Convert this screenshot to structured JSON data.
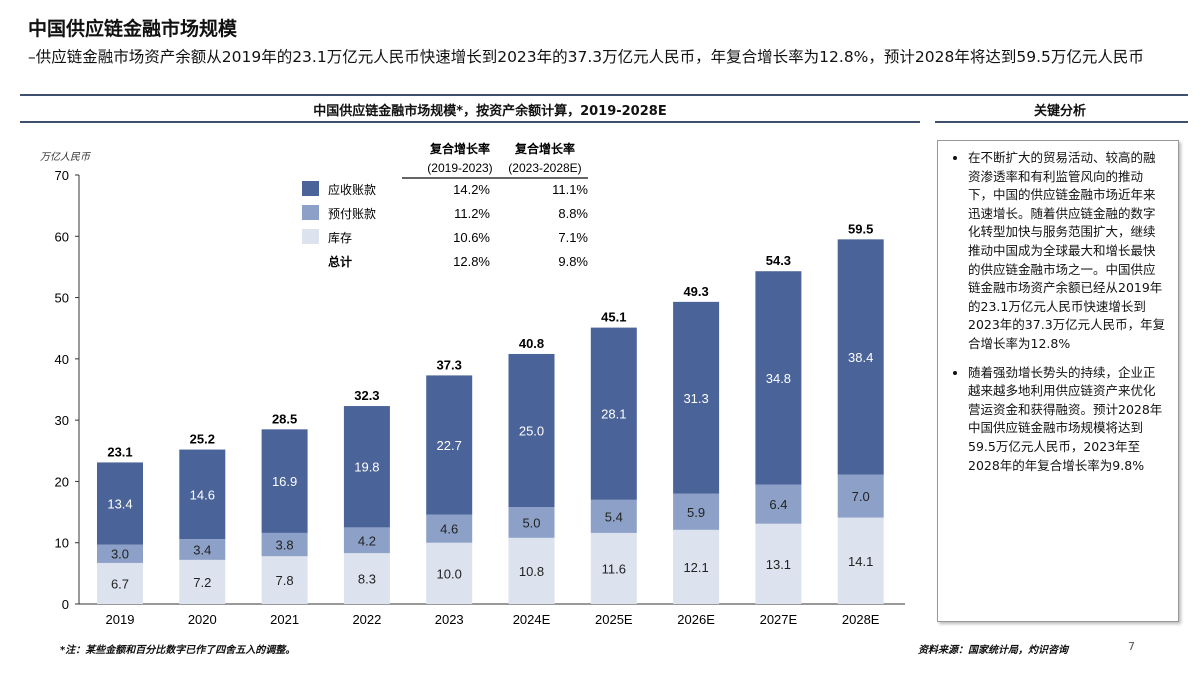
{
  "title": "中国供应链金融市场规模",
  "subtitle": "–供应链金融市场资产余额从2019年的23.1万亿元人民币快速增长到2023年的37.3万亿元人民币，年复合增长率为12.8%，预计2028年将达到59.5万亿元人民币",
  "key_analysis": {
    "title": "关键分析",
    "bullets": [
      "在不断扩大的贸易活动、较高的融资渗透率和有利监管风向的推动下，中国的供应链金融市场近年来迅速增长。随着供应链金融的数字化转型加快与服务范围扩大，继续推动中国成为全球最大和增长最快的供应链金融市场之一。中国供应链金融市场资产余额已经从2019年的23.1万亿元人民币快速增长到2023年的37.3万亿元人民币，年复合增长率为12.8%",
      "随着强劲增长势头的持续，企业正越来越多地利用供应链资产来优化营运资金和获得融资。预计2028年中国供应链金融市场规模将达到59.5万亿元人民币，2023年至2028年的年复合增长率为9.8%"
    ]
  },
  "footnote": "*注：某些金额和百分比数字已作了四舍五入的调整。",
  "source": "资料来源：国家统计局，灼识咨询",
  "page_number": "7",
  "chart_data": {
    "type": "bar",
    "stacked": true,
    "title": "中国供应链金融市场规模*，按资产余额计算，2019-2028E",
    "ylabel": "万亿人民币",
    "ylim": [
      0,
      70
    ],
    "yticks": [
      0,
      10,
      20,
      30,
      40,
      50,
      60,
      70
    ],
    "grid": false,
    "categories": [
      "2019",
      "2020",
      "2021",
      "2022",
      "2023",
      "2024E",
      "2025E",
      "2026E",
      "2027E",
      "2028E"
    ],
    "series": [
      {
        "name": "库存",
        "color": "#dce2ee",
        "values": [
          6.7,
          7.2,
          7.8,
          8.3,
          10.0,
          10.8,
          11.6,
          12.1,
          13.1,
          14.1
        ]
      },
      {
        "name": "预付账款",
        "color": "#8da1c8",
        "values": [
          3.0,
          3.4,
          3.8,
          4.2,
          4.6,
          5.0,
          5.4,
          5.9,
          6.4,
          7.0
        ]
      },
      {
        "name": "应收账款",
        "color": "#4a6399",
        "values": [
          13.4,
          14.6,
          16.9,
          19.8,
          22.7,
          25.0,
          28.1,
          31.3,
          34.8,
          38.4
        ]
      }
    ],
    "totals": [
      23.1,
      25.2,
      28.5,
      32.3,
      37.3,
      40.8,
      45.1,
      49.3,
      54.3,
      59.5
    ],
    "cagr_table": {
      "headers": [
        "复合增长率\n(2019-2023)",
        "复合增长率\n(2023-2028E)"
      ],
      "rows": [
        {
          "label": "应收账款",
          "a": "14.2%",
          "b": "11.1%"
        },
        {
          "label": "预付账款",
          "a": "11.2%",
          "b": "8.8%"
        },
        {
          "label": "库存",
          "a": "10.6%",
          "b": "7.1%"
        },
        {
          "label": "总计",
          "a": "12.8%",
          "b": "9.8%"
        }
      ]
    }
  }
}
